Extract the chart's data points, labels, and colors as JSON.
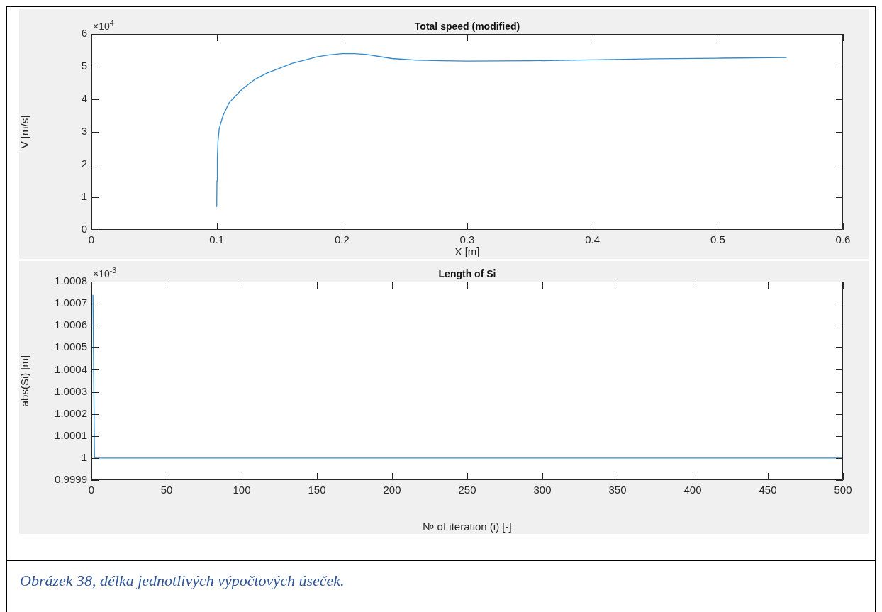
{
  "chart_data": [
    {
      "type": "line",
      "title": "Total speed (modified)",
      "xlabel": "X [m]",
      "ylabel": "V [m/s]",
      "annotations": [
        "×10$^{4}$"
      ],
      "x": [
        0.1,
        0.1002,
        0.1005,
        0.101,
        0.102,
        0.105,
        0.11,
        0.12,
        0.13,
        0.14,
        0.15,
        0.16,
        0.17,
        0.18,
        0.19,
        0.2,
        0.21,
        0.22,
        0.23,
        0.24,
        0.26,
        0.28,
        0.3,
        0.35,
        0.4,
        0.45,
        0.5,
        0.555
      ],
      "series": [
        {
          "color": "#2f8ad0",
          "values": [
            0.7,
            1.5,
            2.2,
            2.7,
            3.1,
            3.5,
            3.9,
            4.3,
            4.6,
            4.8,
            4.95,
            5.1,
            5.2,
            5.3,
            5.36,
            5.4,
            5.4,
            5.37,
            5.31,
            5.25,
            5.2,
            5.18,
            5.17,
            5.18,
            5.21,
            5.24,
            5.26,
            5.28
          ]
        }
      ],
      "xlim": [
        0,
        0.6
      ],
      "xticks": [
        0,
        0.1,
        0.2,
        0.3,
        0.4,
        0.5,
        0.6
      ],
      "ylim": [
        0,
        6
      ],
      "yticks": [
        0,
        1,
        2,
        3,
        4,
        5,
        6
      ],
      "grid": false,
      "legend": false,
      "marker": "none",
      "line_style": "solid"
    },
    {
      "type": "line",
      "title": "Length of Si",
      "xlabel": "№ of iteration (i) [-]",
      "ylabel": "abs(Si) [m]",
      "annotations": [
        "×10$^{-3}$",
        "Obrázek 38, délka jednotlivých výpočtových úseček."
      ],
      "x": [
        1,
        2,
        500
      ],
      "series": [
        {
          "color": "#2f8ad0",
          "values": [
            1.00074,
            1.0,
            1.0
          ]
        }
      ],
      "xlim": [
        0,
        500
      ],
      "xticks": [
        0,
        50,
        100,
        150,
        200,
        250,
        300,
        350,
        400,
        450,
        500
      ],
      "ylim": [
        0.9999,
        1.0008
      ],
      "yticks": [
        0.9999,
        1,
        1.0001,
        1.0002,
        1.0003,
        1.0004,
        1.0005,
        1.0006,
        1.0007,
        1.0008
      ],
      "grid": false,
      "legend": false,
      "marker": "none",
      "line_style": "solid"
    }
  ]
}
